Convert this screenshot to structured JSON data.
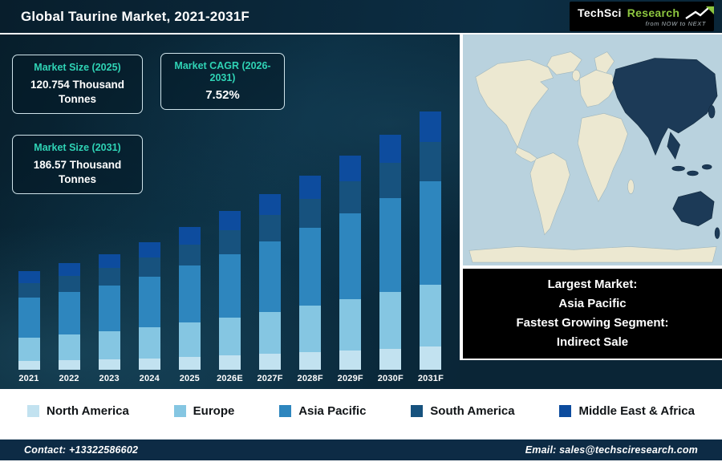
{
  "header": {
    "title": "Global Taurine Market, 2021-2031F",
    "logo": {
      "brand": "TechSci",
      "brand2": "Research",
      "tagline": "from NOW to NEXT"
    }
  },
  "stats": [
    {
      "label": "Market Size (2025)",
      "value": "120.754 Thousand Tonnes"
    },
    {
      "label": "Market CAGR (2026-2031)",
      "value": "7.52%"
    },
    {
      "label": "Market Size (2031)",
      "value": "186.57 Thousand Tonnes"
    }
  ],
  "chart_data": {
    "type": "bar",
    "stacked": true,
    "title": "Global Taurine Market, 2021-2031F",
    "value_unit": "Thousand Tonnes",
    "categories": [
      "2021",
      "2022",
      "2023",
      "2024",
      "2025",
      "2026E",
      "2027F",
      "2028F",
      "2029F",
      "2030F",
      "2031F"
    ],
    "series": [
      {
        "name": "North America",
        "color": "#c2e2f0",
        "values": [
          8.6,
          9.0,
          9.5,
          10.1,
          10.9,
          11.7,
          12.6,
          13.5,
          14.5,
          15.6,
          16.8
        ]
      },
      {
        "name": "Europe",
        "color": "#85c6e2",
        "values": [
          23.0,
          24.1,
          25.3,
          27.0,
          29.0,
          31.2,
          33.5,
          36.0,
          38.7,
          41.6,
          44.8
        ]
      },
      {
        "name": "Asia Pacific",
        "color": "#2e86be",
        "values": [
          38.4,
          40.2,
          42.2,
          45.0,
          48.3,
          51.9,
          55.8,
          60.0,
          64.5,
          69.4,
          74.6
        ]
      },
      {
        "name": "South America",
        "color": "#17527e",
        "values": [
          14.4,
          15.1,
          15.8,
          16.9,
          18.1,
          19.5,
          20.9,
          22.5,
          24.2,
          26.0,
          28.0
        ]
      },
      {
        "name": "Middle East & Africa",
        "color": "#0d4c9e",
        "values": [
          11.5,
          12.1,
          12.7,
          13.5,
          14.5,
          15.6,
          16.8,
          18.0,
          19.4,
          20.8,
          22.4
        ]
      }
    ],
    "known_totals": {
      "2025": 120.754,
      "2031F": 186.57
    },
    "notes": "Other yearly totals estimated from bar heights; CAGR 7.52% (2026-2031). No visible y-axis or gridlines; x-axis labels only.",
    "legend_position": "bottom",
    "grid": false
  },
  "info_panel": {
    "lines": [
      "Largest Market:",
      "Asia Pacific",
      "Fastest Growing Segment:",
      "Indirect Sale"
    ]
  },
  "footer": {
    "contact": "Contact: +13322586602",
    "email": "Email: sales@techsciresearch.com"
  },
  "theme": {
    "accent": "#2fd3b5",
    "panel_bg": "#0a2536",
    "ocean": "#b9d2de",
    "land": "#ece8d1",
    "highlight": "#1c3a57",
    "logo_green": "#8dc63f",
    "footer_bg": "#0d2b45"
  }
}
